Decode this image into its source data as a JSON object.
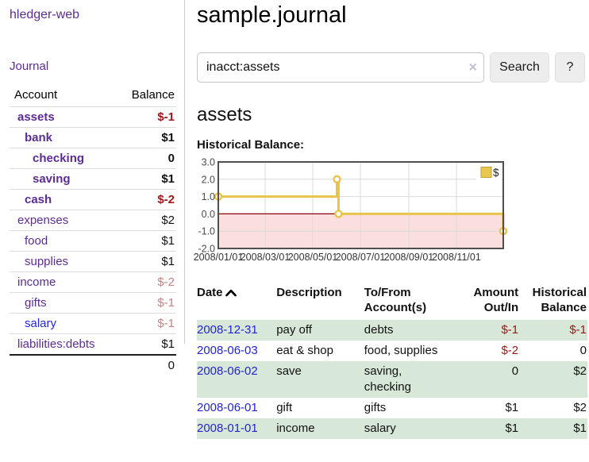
{
  "app": {
    "title": "hledger-web"
  },
  "nav": {
    "journal_label": "Journal"
  },
  "sidebar": {
    "accounts_table": {
      "headers": {
        "account": "Account",
        "balance": "Balance"
      },
      "rows": [
        {
          "account": "assets",
          "balance": "$-1",
          "depth": 1,
          "bold": true,
          "balance_color": "negative-strong"
        },
        {
          "account": "bank",
          "balance": "$1",
          "depth": 2,
          "bold": true,
          "balance_color": ""
        },
        {
          "account": "checking",
          "balance": "0",
          "depth": 3,
          "bold": true,
          "balance_color": ""
        },
        {
          "account": "saving",
          "balance": "$1",
          "depth": 3,
          "bold": true,
          "balance_color": ""
        },
        {
          "account": "cash",
          "balance": "$-2",
          "depth": 2,
          "bold": true,
          "balance_color": "negative-strong"
        },
        {
          "account": "expenses",
          "balance": "$2",
          "depth": 1,
          "bold": false,
          "balance_color": ""
        },
        {
          "account": "food",
          "balance": "$1",
          "depth": 2,
          "bold": false,
          "balance_color": ""
        },
        {
          "account": "supplies",
          "balance": "$1",
          "depth": 2,
          "bold": false,
          "balance_color": ""
        },
        {
          "account": "income",
          "balance": "$-2",
          "depth": 1,
          "bold": false,
          "balance_color": "negative-muted"
        },
        {
          "account": "gifts",
          "balance": "$-1",
          "depth": 2,
          "bold": false,
          "balance_color": "negative-muted"
        },
        {
          "account": "salary",
          "balance": "$-1",
          "depth": 2,
          "bold": false,
          "balance_color": "negative-muted",
          "link_color": "blue"
        },
        {
          "account": "liabilities:debts",
          "balance": "$1",
          "depth": 1,
          "bold": false,
          "balance_color": ""
        }
      ],
      "total": "0"
    }
  },
  "main": {
    "title": "sample.journal",
    "search": {
      "query": "inacct:assets",
      "clear_icon": "×",
      "button_label": "Search",
      "help_label": "?"
    },
    "account_heading": "assets",
    "chart_label": "Historical Balance:"
  },
  "chart_data": {
    "type": "line",
    "title": "Historical Balance:",
    "legend": {
      "label": "$",
      "position": "top-right",
      "swatch_color": "#e9c64d"
    },
    "y_axis": {
      "min": -2,
      "max": 3,
      "ticks": [
        {
          "label": "3.0",
          "value": 3
        },
        {
          "label": "2.0",
          "value": 2
        },
        {
          "label": "1.0",
          "value": 1
        },
        {
          "label": "0.0",
          "value": 0
        },
        {
          "label": "-1.0",
          "value": -1
        },
        {
          "label": "-2.0",
          "value": -2
        }
      ]
    },
    "x_axis": {
      "range_days": 365,
      "ticks": [
        {
          "label": "2008/01/01",
          "day": 0
        },
        {
          "label": "2008/03/01",
          "day": 60
        },
        {
          "label": "2008/05/01",
          "day": 121
        },
        {
          "label": "2008/07/01",
          "day": 182
        },
        {
          "label": "2008/09/01",
          "day": 244
        },
        {
          "label": "2008/11/01",
          "day": 305
        }
      ]
    },
    "series": [
      {
        "name": "$",
        "step_path": [
          [
            0,
            1
          ],
          [
            152,
            1
          ],
          [
            152,
            2
          ],
          [
            154,
            2
          ],
          [
            154,
            0
          ],
          [
            365,
            0
          ],
          [
            365,
            -1
          ]
        ],
        "markers": [
          {
            "date": "2008-01-01",
            "day": 0,
            "value": 1
          },
          {
            "date": "2008-06-01",
            "day": 152,
            "value": 2
          },
          {
            "date": "2008-06-03",
            "day": 154,
            "value": 0
          },
          {
            "date": "2008-12-31",
            "day": 365,
            "value": -1
          }
        ]
      }
    ],
    "grid": true,
    "colors": {
      "line": "#e8c44c",
      "marker_fill": "#fffef8",
      "negative_region_fill": "#fbdfdf",
      "zero_line": "#8b0000",
      "border": "#4f4f4f",
      "gridline": "#d9d9d9",
      "tick_text": "#4a4a4a"
    }
  },
  "register": {
    "headers": {
      "date": "Date",
      "description": "Description",
      "accounts": "To/From Account(s)",
      "amount": "Amount Out/In",
      "balance": "Historical Balance"
    },
    "rows": [
      {
        "date": "2008-12-31",
        "description": "pay off",
        "accounts": "debts",
        "amount": "$-1",
        "balance": "$-1",
        "amount_neg": true,
        "balance_neg": true
      },
      {
        "date": "2008-06-03",
        "description": "eat & shop",
        "accounts": "food, supplies",
        "amount": "$-2",
        "balance": "0",
        "amount_neg": true,
        "balance_neg": false
      },
      {
        "date": "2008-06-02",
        "description": "save",
        "accounts": "saving, checking",
        "amount": "0",
        "balance": "$2",
        "amount_neg": false,
        "balance_neg": false
      },
      {
        "date": "2008-06-01",
        "description": "gift",
        "accounts": "gifts",
        "amount": "$1",
        "balance": "$2",
        "amount_neg": false,
        "balance_neg": false
      },
      {
        "date": "2008-01-01",
        "description": "income",
        "accounts": "salary",
        "amount": "$1",
        "balance": "$1",
        "amount_neg": false,
        "balance_neg": false
      }
    ]
  },
  "colors": {
    "link_purple": "#5b2d91",
    "link_blue": "#2626d8",
    "date_link_blue": "#2424d0",
    "negative_strong": "#9e1616",
    "negative_muted": "#c28484",
    "row_stripe_green": "#d8e8d8",
    "accent_gold": "#e8c44c"
  }
}
